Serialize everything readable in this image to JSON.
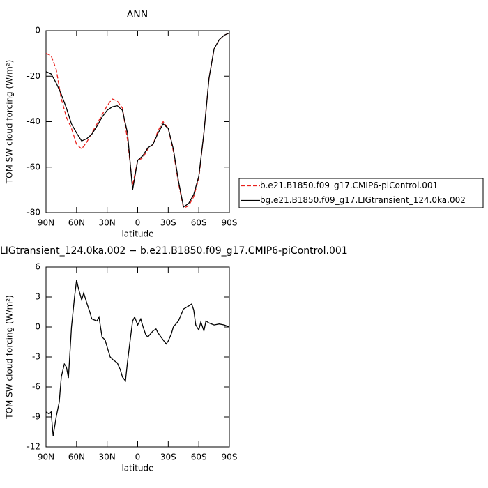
{
  "chart_data": [
    {
      "type": "line",
      "title": "ANN",
      "y_label": "TOM SW cloud forcing (W/m²)",
      "x_label": "latitude",
      "xlim": [
        90,
        -90
      ],
      "ylim": [
        -80,
        0
      ],
      "xticks": [
        {
          "value": 90,
          "label": "90N"
        },
        {
          "value": 60,
          "label": "60N"
        },
        {
          "value": 30,
          "label": "30N"
        },
        0,
        {
          "value": -30,
          "label": "30S"
        },
        {
          "value": -60,
          "label": "60S"
        },
        {
          "value": -90,
          "label": "90S"
        }
      ],
      "yticks": [
        0,
        -20,
        -40,
        -60,
        -80
      ],
      "x": [
        90,
        85,
        80,
        75,
        70,
        65,
        60,
        55,
        50,
        45,
        40,
        35,
        30,
        25,
        20,
        15,
        10,
        5,
        0,
        -5,
        -10,
        -15,
        -20,
        -25,
        -30,
        -35,
        -40,
        -45,
        -50,
        -55,
        -60,
        -65,
        -70,
        -75,
        -80,
        -85,
        -90
      ],
      "series": [
        {
          "name": "b.e21.B1850.f09_g17.CMIP6-piControl.001",
          "color": "#e8201c",
          "line_style": "dashed",
          "values": [
            -10,
            -11,
            -17,
            -30,
            -38,
            -43,
            -50,
            -52,
            -49,
            -45,
            -41,
            -37,
            -33,
            -30,
            -31,
            -34,
            -48,
            -68,
            -57,
            -56,
            -52,
            -50,
            -44,
            -40,
            -43,
            -53,
            -67,
            -78,
            -77,
            -73,
            -65,
            -45,
            -21,
            -8,
            -4,
            -2,
            -1
          ]
        },
        {
          "name": "bg.e21.B1850.f09_g17.LIGtransient_124.0ka.002",
          "color": "#000000",
          "line_style": "solid",
          "values": [
            -18,
            -19,
            -23,
            -28,
            -34,
            -41,
            -45,
            -48.5,
            -47.5,
            -45.5,
            -42,
            -38,
            -35,
            -33.5,
            -33,
            -35,
            -45,
            -70,
            -57,
            -55,
            -51.5,
            -50,
            -45,
            -41,
            -43,
            -52,
            -66,
            -77.5,
            -76,
            -72,
            -64,
            -45,
            -21,
            -8,
            -4,
            -2,
            -1
          ]
        }
      ]
    },
    {
      "type": "line",
      "title": "LIGtransient_124.0ka.002 − b.e21.B1850.f09_g17.CMIP6-piControl.001",
      "y_label": "TOM SW cloud forcing (W/m²)",
      "x_label": "latitude",
      "xlim": [
        90,
        -90
      ],
      "ylim": [
        -12,
        6
      ],
      "xticks": [
        {
          "value": 90,
          "label": "90N"
        },
        {
          "value": 60,
          "label": "60N"
        },
        {
          "value": 30,
          "label": "30N"
        },
        0,
        {
          "value": -30,
          "label": "30S"
        },
        {
          "value": -60,
          "label": "60S"
        },
        {
          "value": -90,
          "label": "90S"
        }
      ],
      "yticks": [
        6,
        3,
        0,
        -3,
        -6,
        -9,
        -12
      ],
      "x": [
        90,
        87,
        85,
        83,
        80,
        77,
        75,
        72,
        70,
        68,
        65,
        62,
        60,
        58,
        55,
        53,
        50,
        47,
        45,
        40,
        38,
        35,
        32,
        30,
        27,
        24,
        20,
        17,
        15,
        12,
        10,
        7,
        5,
        3,
        0,
        -3,
        -5,
        -8,
        -10,
        -15,
        -18,
        -20,
        -25,
        -28,
        -30,
        -33,
        -35,
        -40,
        -45,
        -50,
        -53,
        -55,
        -57,
        -60,
        -62,
        -65,
        -67,
        -70,
        -75,
        -80,
        -85,
        -90
      ],
      "color": "#000000",
      "values": [
        -8.5,
        -8.7,
        -8.5,
        -10.9,
        -9,
        -7.5,
        -5,
        -3.7,
        -4,
        -5.1,
        0,
        3,
        4.7,
        3.8,
        2.7,
        3.4,
        2.4,
        1.5,
        0.8,
        0.6,
        1,
        -1,
        -1.3,
        -2,
        -3,
        -3.3,
        -3.6,
        -4.3,
        -5,
        -5.4,
        -3.5,
        -1,
        0.6,
        1,
        0.2,
        0.8,
        0.1,
        -0.8,
        -1,
        -0.4,
        -0.2,
        -0.6,
        -1.3,
        -1.7,
        -1.4,
        -0.7,
        0,
        0.6,
        1.8,
        2.1,
        2.3,
        1.7,
        0.2,
        -0.3,
        0.5,
        -0.4,
        0.6,
        0.4,
        0.2,
        0.3,
        0.2,
        0
      ]
    }
  ]
}
